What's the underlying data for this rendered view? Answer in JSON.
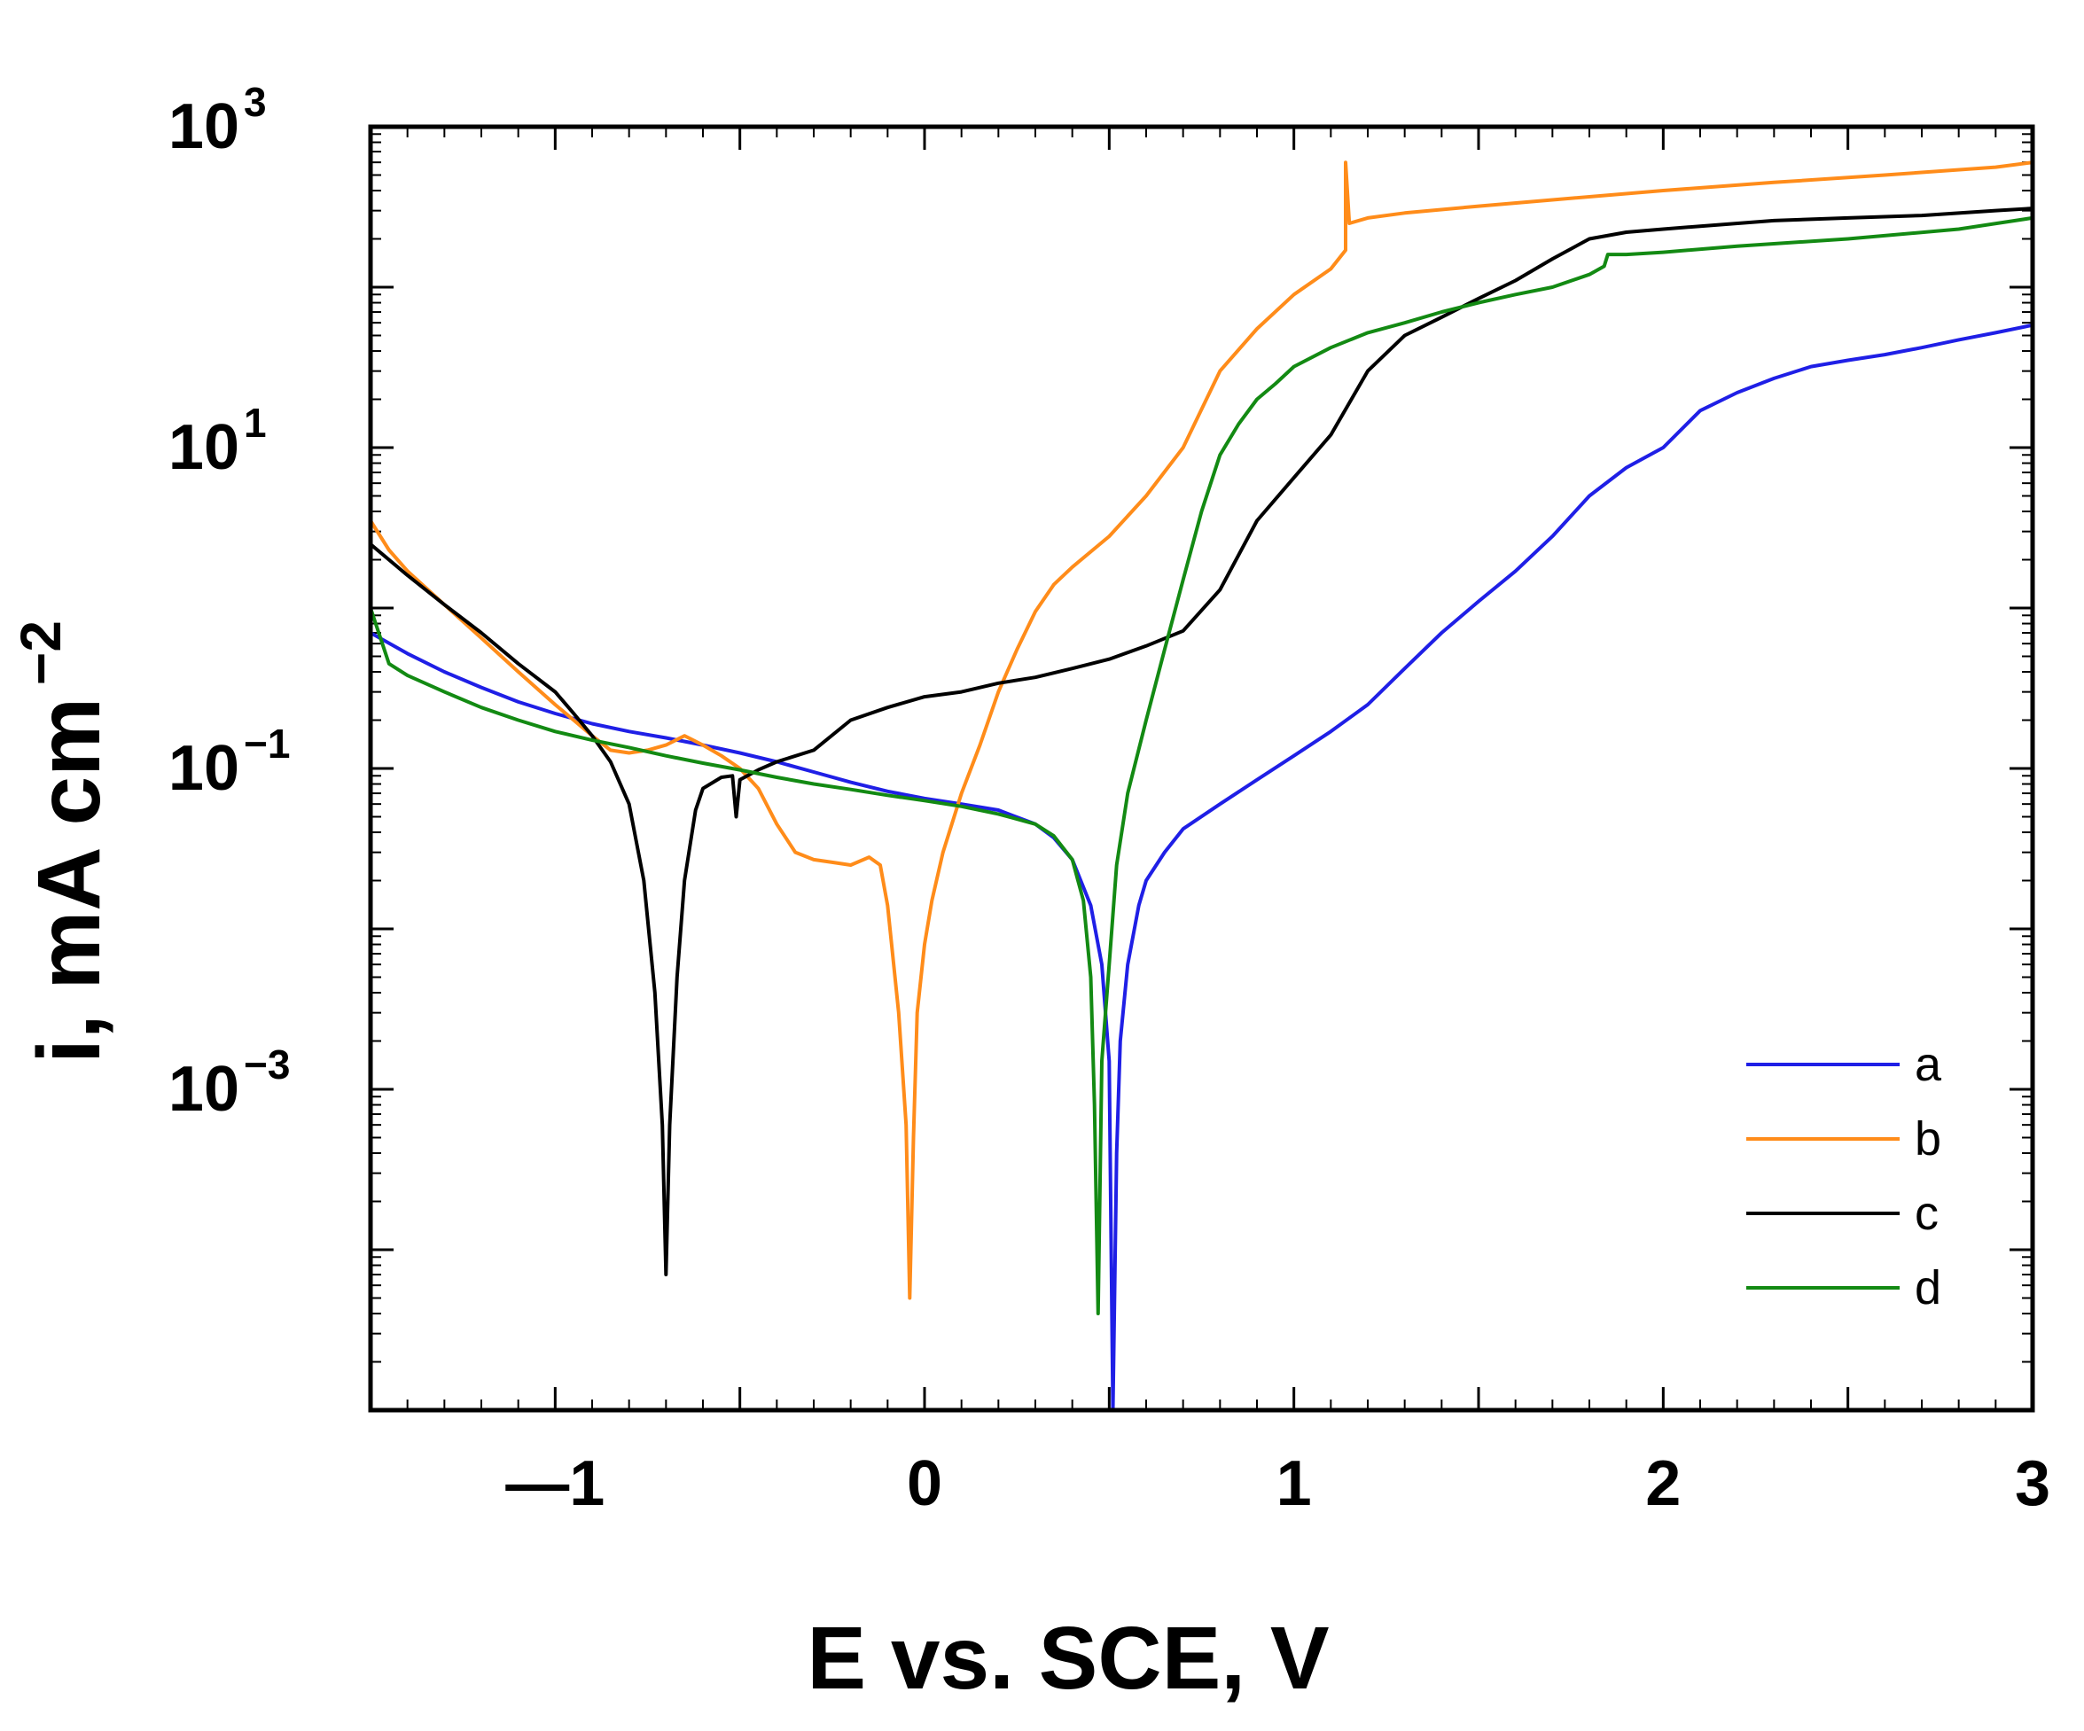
{
  "chart_data": {
    "type": "line",
    "title": "",
    "xlabel": "E vs. SCE, V",
    "ylabel": "i, mA cm",
    "ylabel_exponent": "−2",
    "xlim": [
      -1.5,
      3
    ],
    "ylim": [
      1e-05,
      1000
    ],
    "yscale": "log",
    "x_ticks": [
      {
        "value": -1,
        "label": "—1"
      },
      {
        "value": 0,
        "label": "0"
      },
      {
        "value": 1,
        "label": "1"
      },
      {
        "value": 2,
        "label": "2"
      },
      {
        "value": 3,
        "label": "3"
      }
    ],
    "y_ticks": [
      {
        "value": 0.001,
        "base": "10",
        "exp": "−3"
      },
      {
        "value": 0.1,
        "base": "10",
        "exp": "−1"
      },
      {
        "value": 10,
        "base": "10",
        "exp": "1"
      },
      {
        "value": 1000,
        "base": "10",
        "exp": "3"
      }
    ],
    "legend_position": "lower-right",
    "series": [
      {
        "name": "a",
        "color": "#1f1fe6",
        "x": [
          -1.5,
          -1.4,
          -1.3,
          -1.2,
          -1.1,
          -1.0,
          -0.9,
          -0.8,
          -0.7,
          -0.6,
          -0.5,
          -0.4,
          -0.3,
          -0.2,
          -0.1,
          0.0,
          0.1,
          0.2,
          0.3,
          0.35,
          0.4,
          0.45,
          0.48,
          0.5,
          0.51,
          0.52,
          0.53,
          0.55,
          0.58,
          0.6,
          0.65,
          0.7,
          0.8,
          0.9,
          1.0,
          1.1,
          1.2,
          1.3,
          1.4,
          1.5,
          1.6,
          1.7,
          1.8,
          1.9,
          2.0,
          2.1,
          2.2,
          2.3,
          2.4,
          2.5,
          2.6,
          2.7,
          2.8,
          2.9,
          3.0
        ],
        "y": [
          0.7,
          0.52,
          0.4,
          0.32,
          0.26,
          0.22,
          0.19,
          0.17,
          0.155,
          0.14,
          0.125,
          0.11,
          0.095,
          0.082,
          0.072,
          0.065,
          0.06,
          0.055,
          0.045,
          0.037,
          0.027,
          0.014,
          0.006,
          0.0015,
          1e-05,
          0.0004,
          0.002,
          0.006,
          0.014,
          0.02,
          0.03,
          0.042,
          0.06,
          0.085,
          0.12,
          0.17,
          0.25,
          0.42,
          0.7,
          1.1,
          1.7,
          2.8,
          5.0,
          7.5,
          10,
          17,
          22,
          27,
          32,
          35,
          38,
          42,
          47,
          52,
          58
        ]
      },
      {
        "name": "b",
        "color": "#ff8c1a",
        "x": [
          -1.5,
          -1.45,
          -1.4,
          -1.3,
          -1.2,
          -1.1,
          -1.0,
          -0.95,
          -0.9,
          -0.85,
          -0.8,
          -0.75,
          -0.7,
          -0.65,
          -0.6,
          -0.55,
          -0.5,
          -0.45,
          -0.4,
          -0.35,
          -0.3,
          -0.25,
          -0.2,
          -0.15,
          -0.12,
          -0.1,
          -0.07,
          -0.05,
          -0.04,
          -0.03,
          -0.02,
          0.0,
          0.02,
          0.05,
          0.1,
          0.15,
          0.2,
          0.25,
          0.3,
          0.35,
          0.4,
          0.5,
          0.6,
          0.7,
          0.8,
          0.9,
          1.0,
          1.1,
          1.14,
          1.14,
          1.15,
          1.2,
          1.3,
          1.5,
          1.7,
          2.0,
          2.3,
          2.6,
          2.9,
          3.0
        ],
        "y": [
          3.5,
          2.3,
          1.7,
          1.05,
          0.65,
          0.4,
          0.25,
          0.2,
          0.16,
          0.13,
          0.125,
          0.13,
          0.14,
          0.16,
          0.14,
          0.12,
          0.1,
          0.075,
          0.045,
          0.03,
          0.027,
          0.026,
          0.025,
          0.028,
          0.025,
          0.014,
          0.003,
          0.0006,
          5e-05,
          0.0005,
          0.003,
          0.008,
          0.015,
          0.03,
          0.07,
          0.14,
          0.3,
          0.55,
          0.95,
          1.4,
          1.8,
          2.8,
          5.0,
          10,
          30,
          55,
          90,
          130,
          170,
          600,
          250,
          270,
          290,
          320,
          350,
          400,
          450,
          500,
          560,
          600
        ]
      },
      {
        "name": "c",
        "color": "#000000",
        "x": [
          -1.5,
          -1.4,
          -1.3,
          -1.2,
          -1.1,
          -1.0,
          -0.95,
          -0.9,
          -0.85,
          -0.8,
          -0.76,
          -0.73,
          -0.71,
          -0.7,
          -0.69,
          -0.67,
          -0.65,
          -0.62,
          -0.6,
          -0.55,
          -0.52,
          -0.51,
          -0.5,
          -0.45,
          -0.4,
          -0.3,
          -0.2,
          -0.1,
          0.0,
          0.1,
          0.2,
          0.3,
          0.4,
          0.5,
          0.6,
          0.7,
          0.8,
          0.9,
          1.0,
          1.1,
          1.2,
          1.3,
          1.4,
          1.5,
          1.6,
          1.7,
          1.8,
          1.9,
          2.0,
          2.1,
          2.3,
          2.5,
          2.7,
          2.9,
          3.0
        ],
        "y": [
          2.5,
          1.6,
          1.05,
          0.7,
          0.45,
          0.3,
          0.22,
          0.16,
          0.11,
          0.06,
          0.02,
          0.004,
          0.0006,
          7e-05,
          0.0006,
          0.005,
          0.02,
          0.055,
          0.075,
          0.088,
          0.09,
          0.05,
          0.085,
          0.098,
          0.11,
          0.13,
          0.2,
          0.24,
          0.28,
          0.3,
          0.34,
          0.37,
          0.42,
          0.48,
          0.58,
          0.72,
          1.3,
          3.5,
          6.5,
          12,
          30,
          50,
          65,
          85,
          110,
          150,
          200,
          220,
          230,
          240,
          260,
          270,
          280,
          300,
          310
        ]
      },
      {
        "name": "d",
        "color": "#138a13",
        "x": [
          -1.5,
          -1.45,
          -1.4,
          -1.3,
          -1.2,
          -1.1,
          -1.0,
          -0.9,
          -0.8,
          -0.7,
          -0.6,
          -0.5,
          -0.4,
          -0.3,
          -0.2,
          -0.1,
          0.0,
          0.1,
          0.2,
          0.3,
          0.35,
          0.4,
          0.43,
          0.45,
          0.46,
          0.47,
          0.48,
          0.5,
          0.52,
          0.55,
          0.6,
          0.65,
          0.7,
          0.75,
          0.8,
          0.85,
          0.9,
          0.95,
          1.0,
          1.1,
          1.2,
          1.3,
          1.4,
          1.5,
          1.6,
          1.7,
          1.8,
          1.84,
          1.85,
          1.9,
          2.0,
          2.2,
          2.5,
          2.8,
          3.0
        ],
        "y": [
          1.0,
          0.45,
          0.38,
          0.3,
          0.24,
          0.2,
          0.17,
          0.15,
          0.135,
          0.12,
          0.108,
          0.098,
          0.088,
          0.08,
          0.074,
          0.068,
          0.063,
          0.058,
          0.052,
          0.045,
          0.038,
          0.027,
          0.015,
          0.005,
          0.0008,
          4e-05,
          0.0015,
          0.006,
          0.025,
          0.07,
          0.2,
          0.55,
          1.5,
          4,
          9,
          14,
          20,
          25,
          32,
          42,
          52,
          60,
          70,
          80,
          90,
          100,
          120,
          135,
          160,
          160,
          165,
          180,
          200,
          230,
          270
        ]
      }
    ]
  }
}
